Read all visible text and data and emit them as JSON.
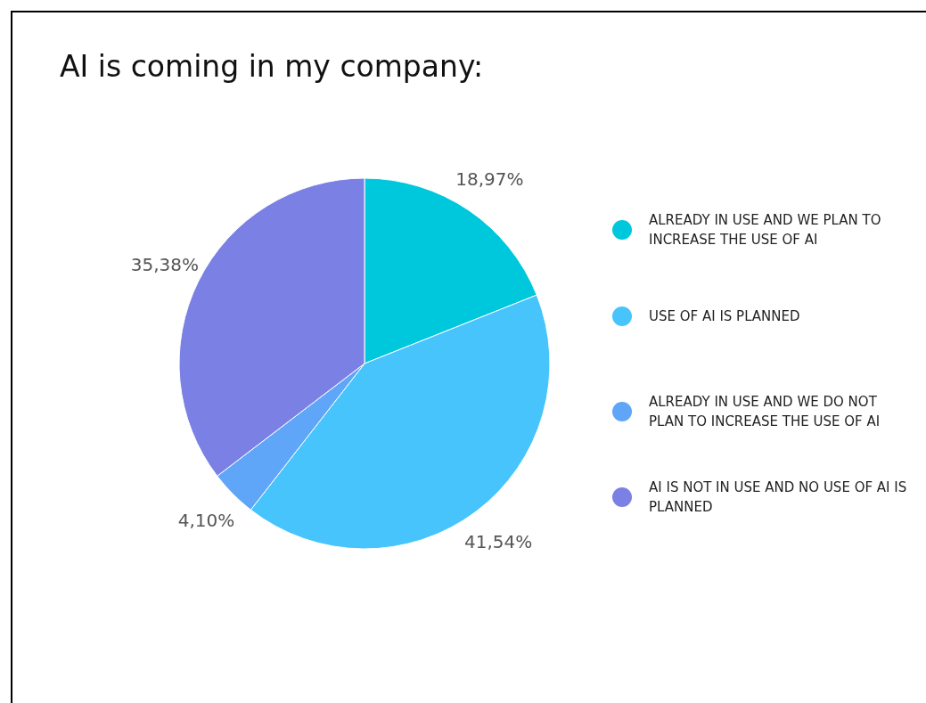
{
  "chart_data": {
    "type": "pie",
    "title": "AI is coming in my company:",
    "categories": [
      "ALREADY IN USE AND WE PLAN TO INCREASE THE USE OF AI",
      "USE OF AI IS PLANNED",
      "ALREADY IN USE AND WE DO NOT PLAN TO INCREASE THE USE OF AI",
      "AI IS NOT IN USE AND NO USE OF AI IS PLANNED"
    ],
    "values": [
      18.97,
      41.54,
      4.1,
      35.38
    ],
    "colors": [
      "#00c8dc",
      "#48c4fc",
      "#60a6f8",
      "#7b80e4"
    ],
    "value_labels": [
      "18,97%",
      "41,54%",
      "4,10%",
      "35,38%"
    ],
    "legend": "right"
  }
}
